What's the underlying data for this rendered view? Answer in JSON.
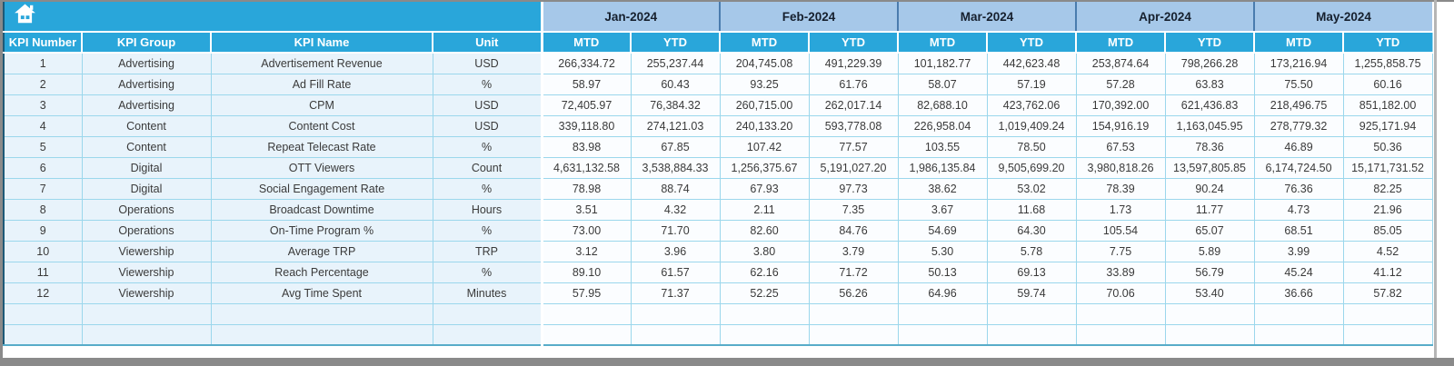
{
  "colors": {
    "header_cyan": "#29a6da",
    "month_blue": "#a6c8e9",
    "month_divider": "#4a7cae",
    "month_text": "#16202e",
    "row_left_bg": "#e8f3fb",
    "row_data_bg": "#fbfdff",
    "grid_line": "#9bd7ec",
    "table_outline": "#1d5977",
    "table_bottom": "#58acc9",
    "frame_gray": "#8a8a8a",
    "data_text": "#3a3a3a"
  },
  "header": {
    "columns": [
      "KPI Number",
      "KPI Group",
      "KPI Name",
      "Unit"
    ],
    "months": [
      "Jan-2024",
      "Feb-2024",
      "Mar-2024",
      "Apr-2024",
      "May-2024"
    ],
    "subheaders": [
      "MTD",
      "YTD"
    ]
  },
  "table": {
    "empty_rows": 2,
    "rows": [
      {
        "kpi_number": "1",
        "kpi_group": "Advertising",
        "kpi_name": "Advertisement Revenue",
        "unit": "USD",
        "values": [
          "266,334.72",
          "255,237.44",
          "204,745.08",
          "491,229.39",
          "101,182.77",
          "442,623.48",
          "253,874.64",
          "798,266.28",
          "173,216.94",
          "1,255,858.75"
        ]
      },
      {
        "kpi_number": "2",
        "kpi_group": "Advertising",
        "kpi_name": "Ad Fill Rate",
        "unit": "%",
        "values": [
          "58.97",
          "60.43",
          "93.25",
          "61.76",
          "58.07",
          "57.19",
          "57.28",
          "63.83",
          "75.50",
          "60.16"
        ]
      },
      {
        "kpi_number": "3",
        "kpi_group": "Advertising",
        "kpi_name": "CPM",
        "unit": "USD",
        "values": [
          "72,405.97",
          "76,384.32",
          "260,715.00",
          "262,017.14",
          "82,688.10",
          "423,762.06",
          "170,392.00",
          "621,436.83",
          "218,496.75",
          "851,182.00"
        ]
      },
      {
        "kpi_number": "4",
        "kpi_group": "Content",
        "kpi_name": "Content Cost",
        "unit": "USD",
        "values": [
          "339,118.80",
          "274,121.03",
          "240,133.20",
          "593,778.08",
          "226,958.04",
          "1,019,409.24",
          "154,916.19",
          "1,163,045.95",
          "278,779.32",
          "925,171.94"
        ]
      },
      {
        "kpi_number": "5",
        "kpi_group": "Content",
        "kpi_name": "Repeat Telecast Rate",
        "unit": "%",
        "values": [
          "83.98",
          "67.85",
          "107.42",
          "77.57",
          "103.55",
          "78.50",
          "67.53",
          "78.36",
          "46.89",
          "50.36"
        ]
      },
      {
        "kpi_number": "6",
        "kpi_group": "Digital",
        "kpi_name": "OTT Viewers",
        "unit": "Count",
        "values": [
          "4,631,132.58",
          "3,538,884.33",
          "1,256,375.67",
          "5,191,027.20",
          "1,986,135.84",
          "9,505,699.20",
          "3,980,818.26",
          "13,597,805.85",
          "6,174,724.50",
          "15,171,731.52"
        ]
      },
      {
        "kpi_number": "7",
        "kpi_group": "Digital",
        "kpi_name": "Social Engagement Rate",
        "unit": "%",
        "values": [
          "78.98",
          "88.74",
          "67.93",
          "97.73",
          "38.62",
          "53.02",
          "78.39",
          "90.24",
          "76.36",
          "82.25"
        ]
      },
      {
        "kpi_number": "8",
        "kpi_group": "Operations",
        "kpi_name": "Broadcast Downtime",
        "unit": "Hours",
        "values": [
          "3.51",
          "4.32",
          "2.11",
          "7.35",
          "3.67",
          "11.68",
          "1.73",
          "11.77",
          "4.73",
          "21.96"
        ]
      },
      {
        "kpi_number": "9",
        "kpi_group": "Operations",
        "kpi_name": "On-Time Program %",
        "unit": "%",
        "values": [
          "73.00",
          "71.70",
          "82.60",
          "84.76",
          "54.69",
          "64.30",
          "105.54",
          "65.07",
          "68.51",
          "85.05"
        ]
      },
      {
        "kpi_number": "10",
        "kpi_group": "Viewership",
        "kpi_name": "Average TRP",
        "unit": "TRP",
        "values": [
          "3.12",
          "3.96",
          "3.80",
          "3.79",
          "5.30",
          "5.78",
          "7.75",
          "5.89",
          "3.99",
          "4.52"
        ]
      },
      {
        "kpi_number": "11",
        "kpi_group": "Viewership",
        "kpi_name": "Reach Percentage",
        "unit": "%",
        "values": [
          "89.10",
          "61.57",
          "62.16",
          "71.72",
          "50.13",
          "69.13",
          "33.89",
          "56.79",
          "45.24",
          "41.12"
        ]
      },
      {
        "kpi_number": "12",
        "kpi_group": "Viewership",
        "kpi_name": "Avg Time Spent",
        "unit": "Minutes",
        "values": [
          "57.95",
          "71.37",
          "52.25",
          "56.26",
          "64.96",
          "59.74",
          "70.06",
          "53.40",
          "36.66",
          "57.82"
        ]
      }
    ]
  }
}
